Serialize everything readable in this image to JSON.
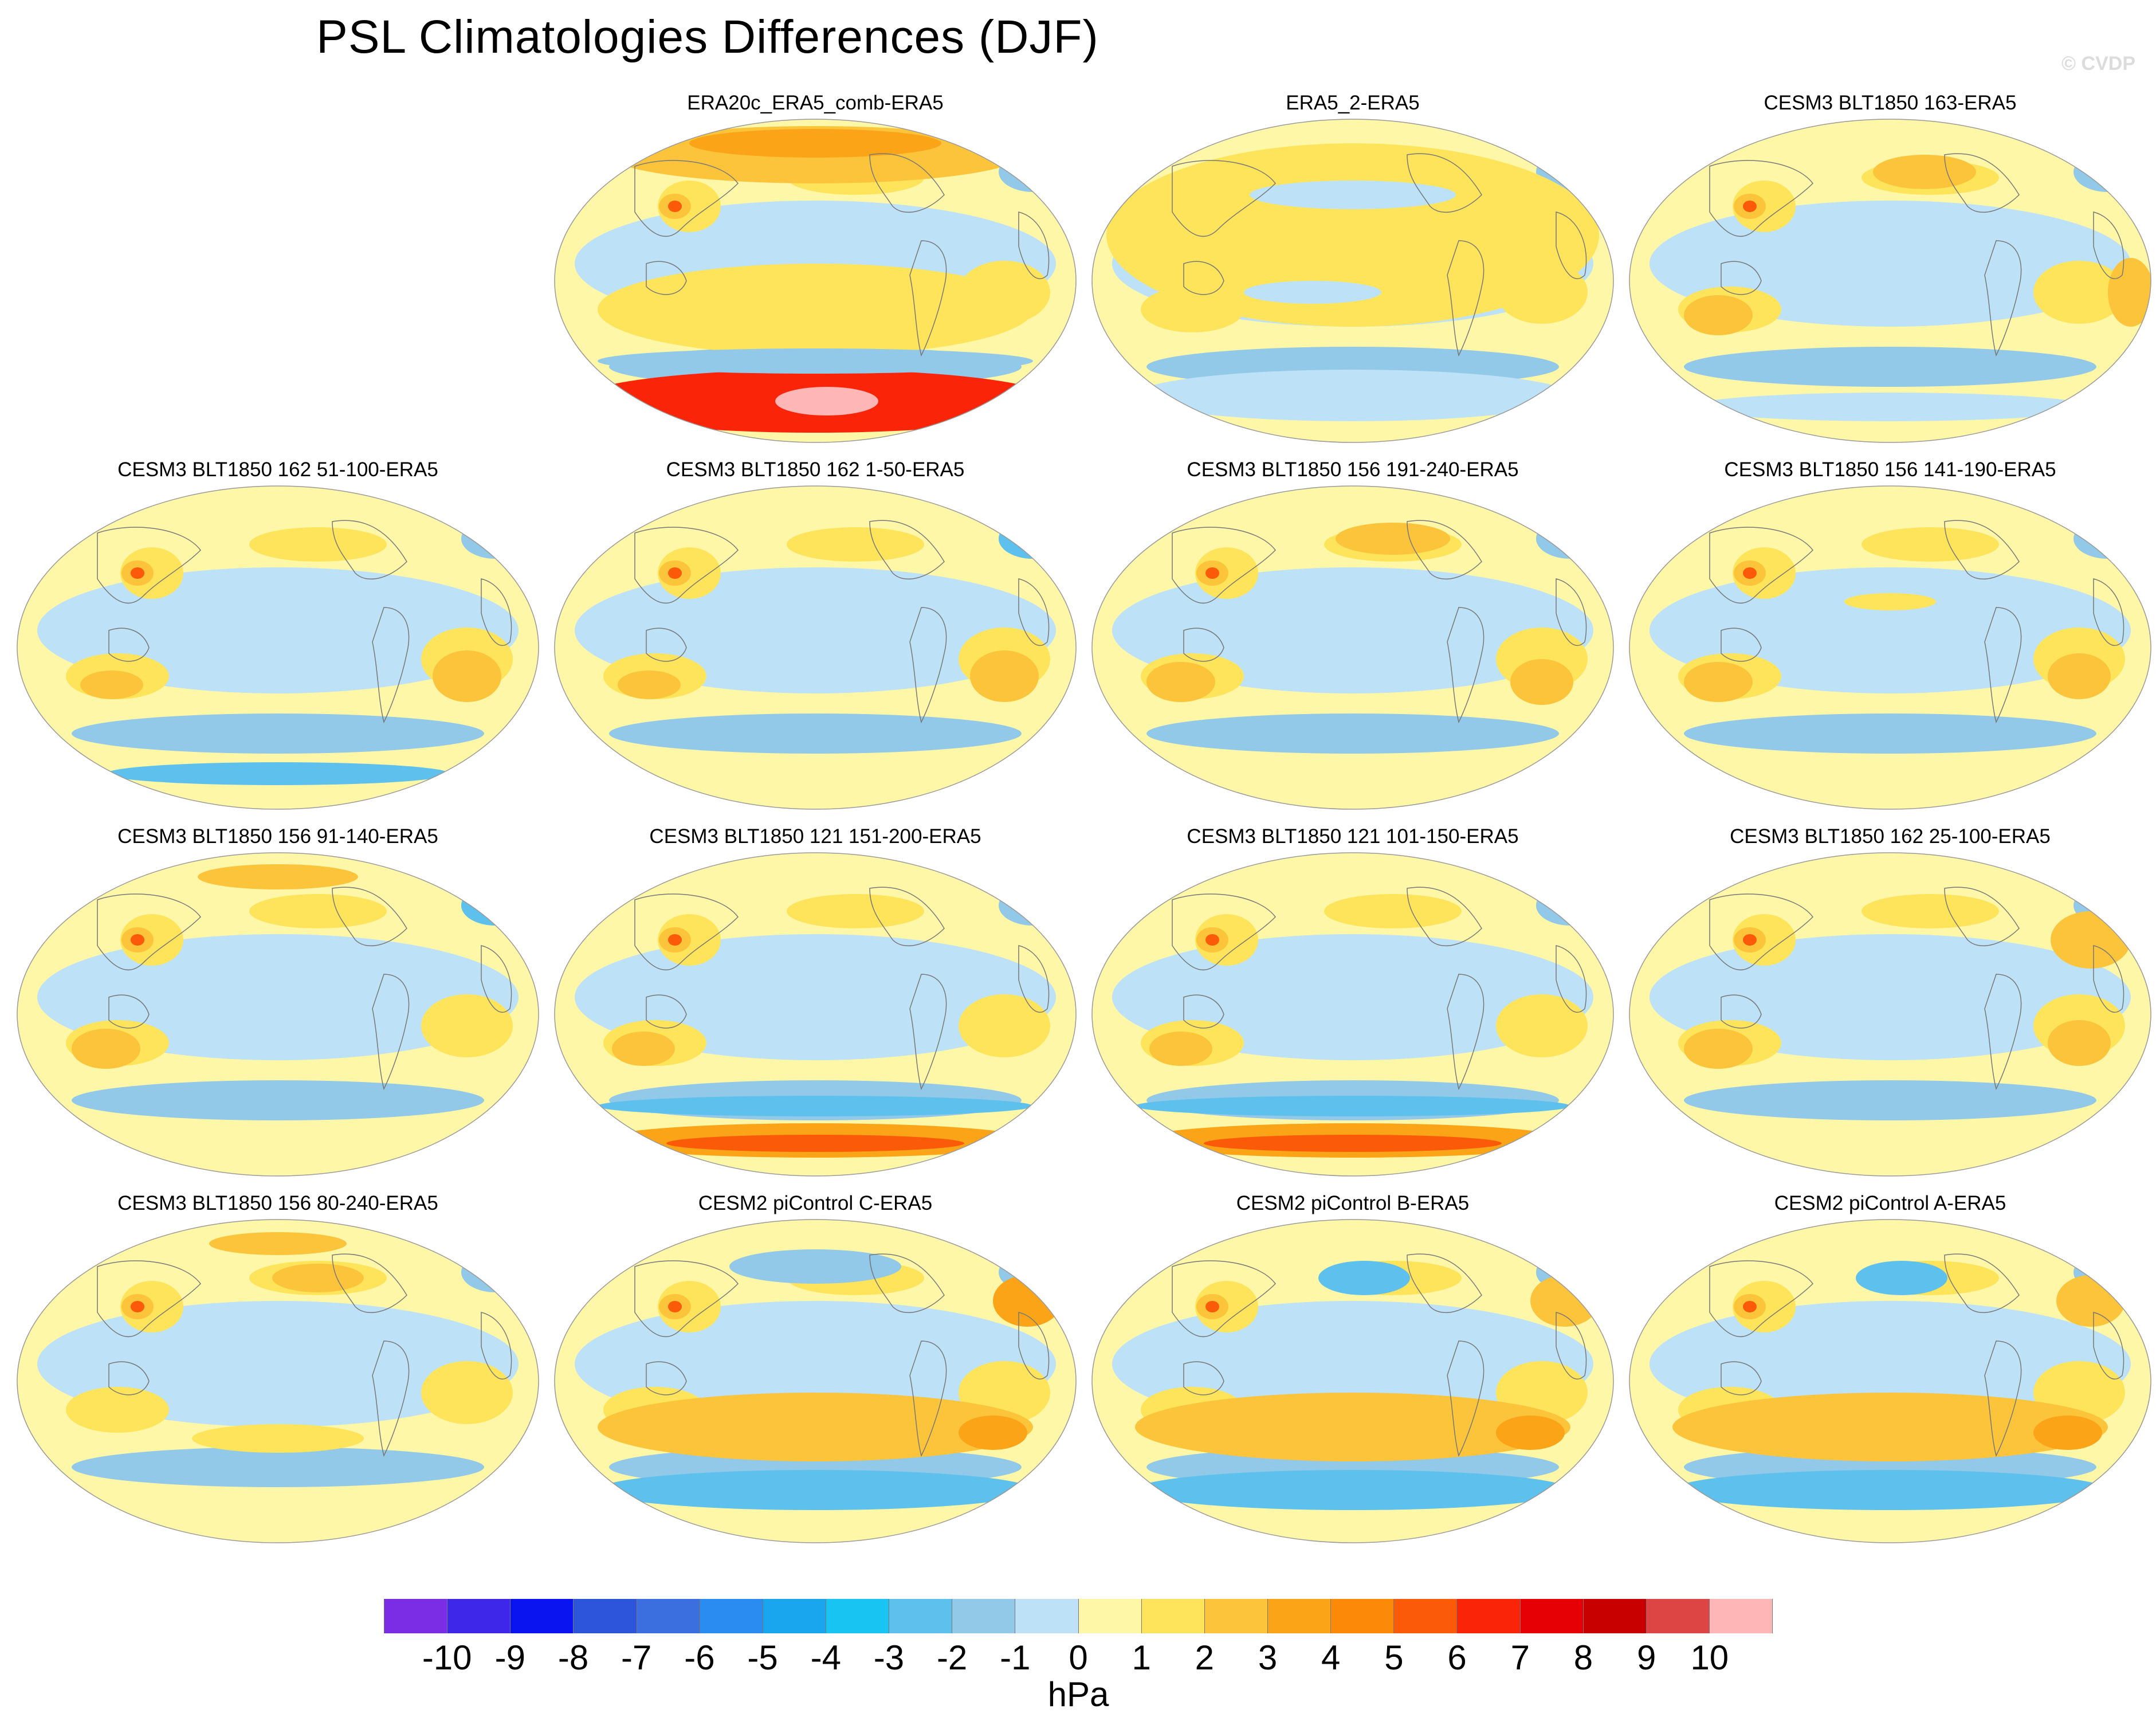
{
  "title": "PSL Climatologies Differences (DJF)",
  "watermark": "© CVDP",
  "units": "hPa",
  "colorbar": {
    "labels": [
      "-10",
      "-9",
      "-8",
      "-7",
      "-6",
      "-5",
      "-4",
      "-3",
      "-2",
      "-1",
      "0",
      "1",
      "2",
      "3",
      "4",
      "5",
      "6",
      "7",
      "8",
      "9",
      "10"
    ],
    "colors": [
      "#7b2de6",
      "#3e27e8",
      "#0a14f0",
      "#2c55dc",
      "#3b6fe0",
      "#2a8cf0",
      "#1aa6ee",
      "#18c4f2",
      "#5ec0ec",
      "#92c8e8",
      "#bde1f6",
      "#fff7a8",
      "#fde45a",
      "#fcc43a",
      "#fba418",
      "#fc8a08",
      "#fb5a08",
      "#fa2408",
      "#e60006",
      "#c80000",
      "#dd4444",
      "#ffb6b6"
    ]
  },
  "panels": [
    {
      "label": "ERA20c_ERA5_comb-ERA5"
    },
    {
      "label": "ERA5_2-ERA5"
    },
    {
      "label": "CESM3 BLT1850 163-ERA5"
    },
    {
      "label": "CESM3 BLT1850 162 51-100-ERA5"
    },
    {
      "label": "CESM3 BLT1850 162 1-50-ERA5"
    },
    {
      "label": "CESM3 BLT1850 156 191-240-ERA5"
    },
    {
      "label": "CESM3 BLT1850 156 141-190-ERA5"
    },
    {
      "label": "CESM3 BLT1850 156 91-140-ERA5"
    },
    {
      "label": "CESM3 BLT1850 121 151-200-ERA5"
    },
    {
      "label": "CESM3 BLT1850 121 101-150-ERA5"
    },
    {
      "label": "CESM3 BLT1850 162 25-100-ERA5"
    },
    {
      "label": "CESM3 BLT1850 156 80-240-ERA5"
    },
    {
      "label": "CESM2 piControl C-ERA5"
    },
    {
      "label": "CESM2 piControl B-ERA5"
    },
    {
      "label": "CESM2 piControl A-ERA5"
    }
  ]
}
